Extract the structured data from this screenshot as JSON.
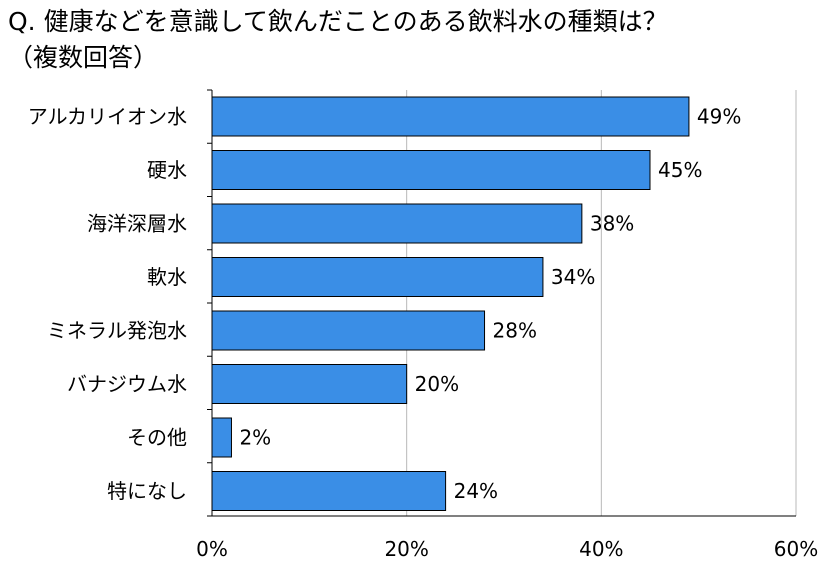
{
  "title_lines": [
    "Q. 健康などを意識して飲んだことのある飲料水の種類は？",
    "（複数回答）"
  ],
  "colors": {
    "bar_fill": "#3a8ee6",
    "bar_stroke": "#000000",
    "grid": "#b8b8b8",
    "axis": "#000000"
  },
  "chart_data": {
    "type": "bar",
    "orientation": "horizontal",
    "categories": [
      "アルカリイオン水",
      "硬水",
      "海洋深層水",
      "軟水",
      "ミネラル発泡水",
      "バナジウム水",
      "その他",
      "特になし"
    ],
    "values": [
      49,
      45,
      38,
      34,
      28,
      20,
      2,
      24
    ],
    "value_suffix": "%",
    "xlim": [
      0,
      60
    ],
    "xticks": [
      0,
      20,
      40,
      60
    ],
    "xtick_labels": [
      "0%",
      "20%",
      "40%",
      "60%"
    ],
    "grid": true,
    "legend": false
  }
}
